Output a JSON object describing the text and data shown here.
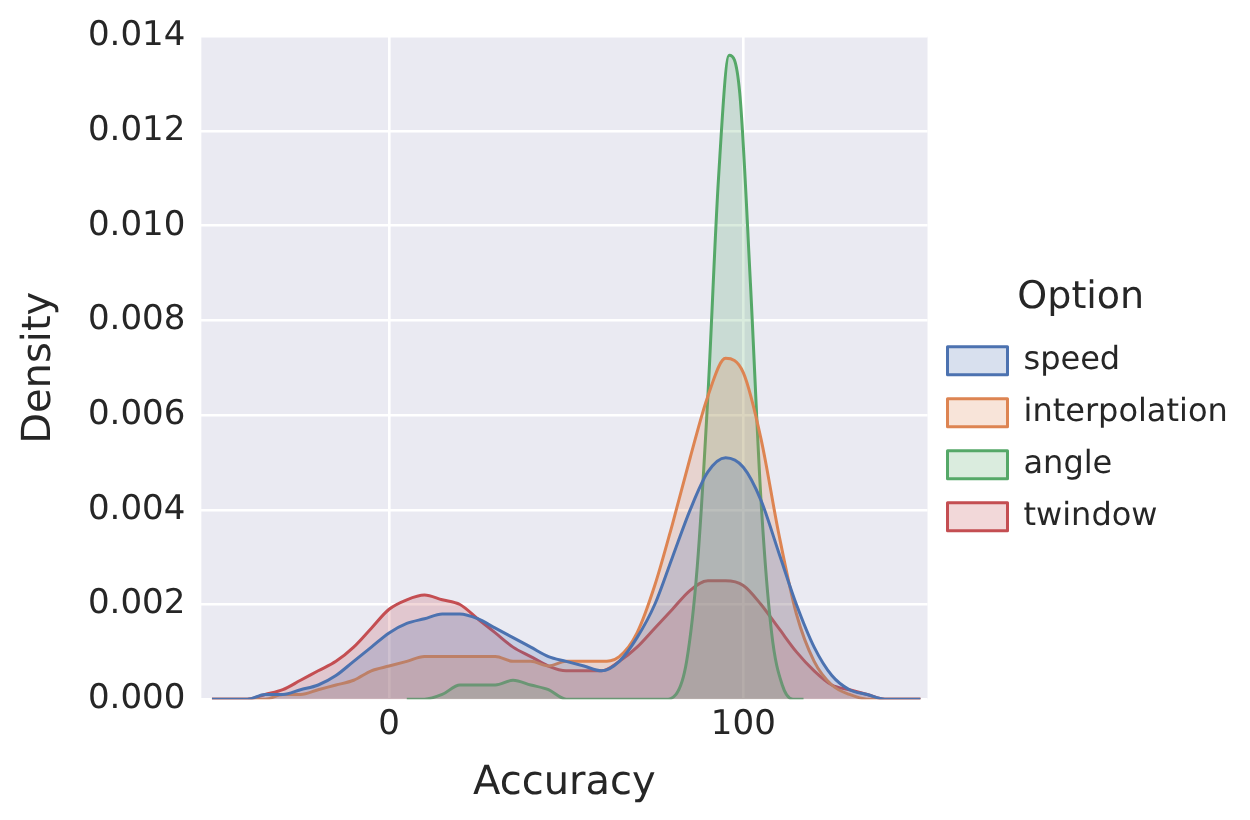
{
  "chart_data": {
    "type": "area",
    "xlabel": "Accuracy",
    "ylabel": "Density",
    "legend_title": "Option",
    "legend": "right",
    "grid": true,
    "marker": "none",
    "line_style": "solid",
    "xlim": [
      -53,
      152
    ],
    "xticks": [
      0,
      100
    ],
    "ylim": [
      0,
      0.014
    ],
    "yticks": [
      {
        "value": 0,
        "label": "0.000"
      },
      {
        "value": 0.002,
        "label": "0.002"
      },
      {
        "value": 0.004,
        "label": "0.004"
      },
      {
        "value": 0.006,
        "label": "0.006"
      },
      {
        "value": 0.008,
        "label": "0.008"
      },
      {
        "value": 0.01,
        "label": "0.010"
      },
      {
        "value": 0.012,
        "label": "0.012"
      },
      {
        "value": 0.014,
        "label": "0.014"
      }
    ],
    "x": [
      -50,
      -45,
      -40,
      -35,
      -30,
      -25,
      -20,
      -15,
      -10,
      -5,
      0,
      5,
      10,
      15,
      20,
      25,
      30,
      35,
      40,
      45,
      50,
      55,
      60,
      65,
      70,
      75,
      80,
      85,
      90,
      95,
      100,
      105,
      110,
      115,
      120,
      125,
      130,
      135,
      140,
      145,
      150
    ],
    "series": [
      {
        "name": "speed",
        "color": "#4c72b0",
        "values": [
          0,
          0,
          0,
          0.0001,
          0.0001,
          0.0002,
          0.0003,
          0.0005,
          0.0008,
          0.0011,
          0.0014,
          0.0016,
          0.0017,
          0.0018,
          0.0018,
          0.0017,
          0.0015,
          0.0013,
          0.0011,
          0.0009,
          0.0008,
          0.0007,
          0.0006,
          0.0008,
          0.0013,
          0.002,
          0.003,
          0.004,
          0.0048,
          0.0051,
          0.0049,
          0.0042,
          0.0031,
          0.002,
          0.0011,
          0.0005,
          0.0002,
          0.0001,
          0,
          0,
          0
        ]
      },
      {
        "name": "interpolation",
        "color": "#dd8452",
        "values": [
          0,
          0,
          0,
          0,
          0.0001,
          0.0001,
          0.0002,
          0.0003,
          0.0004,
          0.0006,
          0.0007,
          0.0008,
          0.0009,
          0.0009,
          0.0009,
          0.0009,
          0.0009,
          0.0008,
          0.0008,
          0.0007,
          0.0008,
          0.0008,
          0.0008,
          0.0009,
          0.0014,
          0.0024,
          0.0037,
          0.0051,
          0.0064,
          0.0072,
          0.0069,
          0.0055,
          0.0035,
          0.0018,
          0.0008,
          0.0003,
          0.0001,
          0,
          0,
          0,
          0
        ]
      },
      {
        "name": "angle",
        "color": "#55a868",
        "x": [
          5,
          10,
          15,
          20,
          25,
          30,
          35,
          40,
          45,
          50,
          55,
          78,
          81,
          84,
          87,
          90,
          93,
          96,
          99,
          102,
          105,
          108,
          111,
          114,
          117
        ],
        "values": [
          0,
          0,
          0.0001,
          0.0003,
          0.0003,
          0.0003,
          0.0004,
          0.0003,
          0.0002,
          0,
          0,
          0,
          0.0001,
          0.0008,
          0.0028,
          0.0064,
          0.011,
          0.0136,
          0.0128,
          0.0088,
          0.0042,
          0.0014,
          0.0003,
          0,
          0
        ]
      },
      {
        "name": "twindow",
        "color": "#c44e52",
        "values": [
          0,
          0,
          0,
          0.0001,
          0.0002,
          0.0004,
          0.0006,
          0.0008,
          0.0011,
          0.0015,
          0.0019,
          0.0021,
          0.0022,
          0.0021,
          0.002,
          0.0017,
          0.0014,
          0.0011,
          0.0009,
          0.0007,
          0.0006,
          0.0006,
          0.0006,
          0.0008,
          0.0011,
          0.0015,
          0.0019,
          0.0023,
          0.0025,
          0.0025,
          0.0024,
          0.002,
          0.0015,
          0.001,
          0.0006,
          0.0003,
          0.0002,
          0.0001,
          0,
          0,
          0
        ]
      }
    ]
  }
}
